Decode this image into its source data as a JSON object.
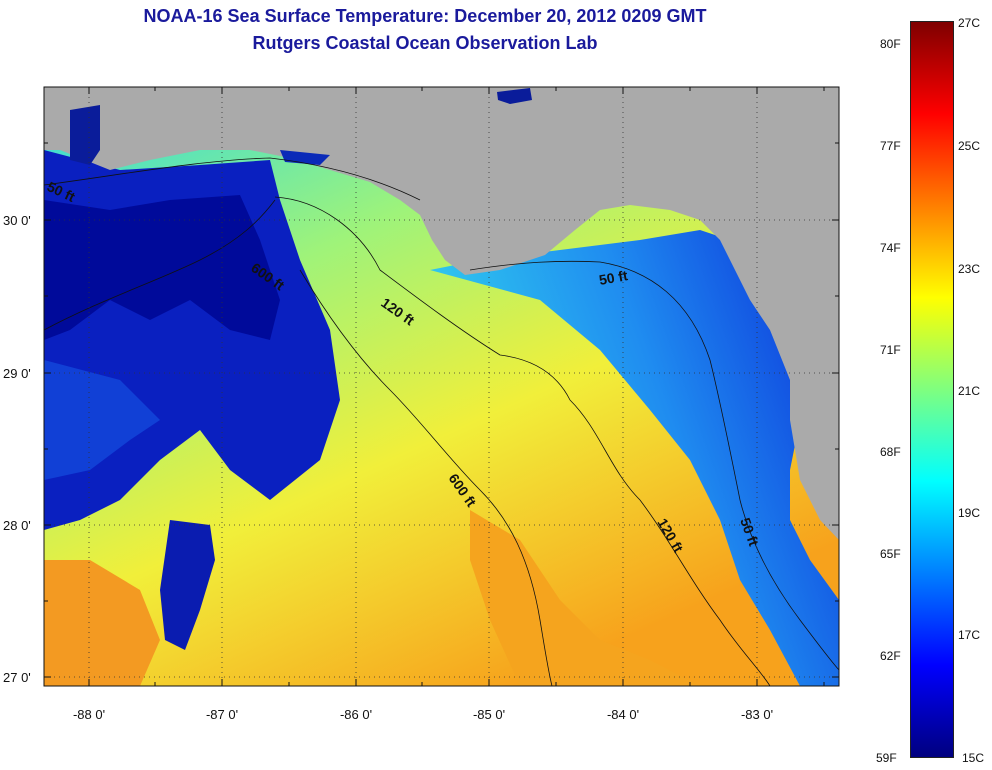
{
  "title": {
    "line1": "NOAA-16 Sea Surface Temperature:  December 20, 2012 0209 GMT",
    "line2": "Rutgers Coastal Ocean Observation Lab"
  },
  "map": {
    "lat_labels": [
      "30 0'",
      "29 0'",
      "28 0'",
      "27 0'"
    ],
    "lon_labels": [
      "-88 0'",
      "-87 0'",
      "-86 0'",
      "-85 0'",
      "-84 0'",
      "-83 0'"
    ],
    "contours": [
      "50 ft",
      "600 ft",
      "120 ft",
      "50 ft",
      "600 ft",
      "120 ft",
      "50 ft"
    ]
  },
  "colorbar": {
    "f_labels": [
      "80F",
      "77F",
      "74F",
      "71F",
      "68F",
      "65F",
      "62F",
      "59F"
    ],
    "c_labels": [
      "27C",
      "25C",
      "23C",
      "21C",
      "19C",
      "17C",
      "15C"
    ],
    "colors": [
      "#00007f",
      "#0000ff",
      "#007fff",
      "#00ffff",
      "#7fff7f",
      "#ffff00",
      "#ff7f00",
      "#ff0000",
      "#7f0000"
    ]
  },
  "colors": {
    "land": "#aaaaaa",
    "title": "#1a1a9c"
  }
}
